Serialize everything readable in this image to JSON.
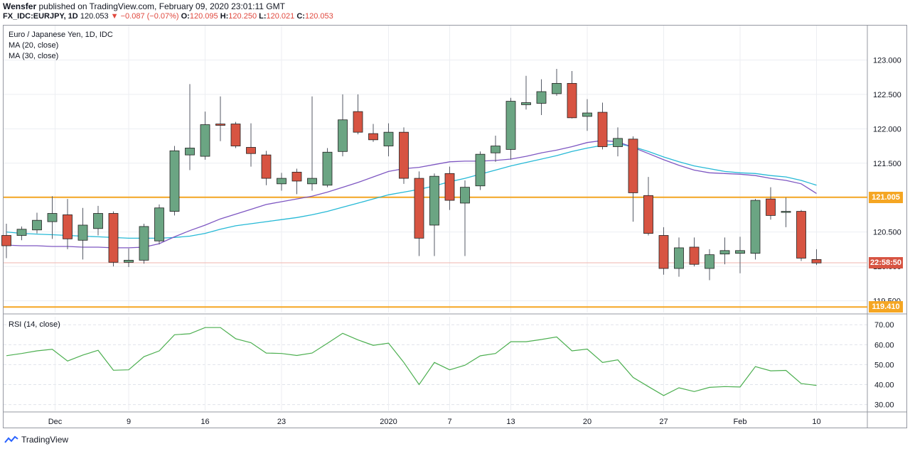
{
  "header": {
    "author": "Wensfer",
    "published_text": "published on TradingView.com, February 09, 2020 23:01:11 GMT",
    "symbol": "FX_IDC:EURJPY, 1D",
    "last_price": "120.053",
    "change_arrow": "▼",
    "change": "−0.087 (−0.07%)",
    "open_label": "O:",
    "open": "120.095",
    "high_label": "H:",
    "high": "120.250",
    "low_label": "L:",
    "low": "120.021",
    "close_label": "C:",
    "close": "120.053"
  },
  "legend": {
    "title": "Euro / Japanese Yen, 1D, IDC",
    "ma20": "MA (20, close)",
    "ma30": "MA (30, close)"
  },
  "rsi_label": "RSI (14, close)",
  "price_axis_labels": [
    "123.000",
    "122.500",
    "122.000",
    "121.500",
    "121.000",
    "120.500",
    "120.000",
    "119.500"
  ],
  "rsi_axis_labels": [
    "70.00",
    "60.00",
    "50.00",
    "40.00",
    "30.00"
  ],
  "tags": {
    "resistance": "121.005",
    "countdown": "22:58:50",
    "support": "119.410"
  },
  "footer": {
    "brand": "TradingView"
  },
  "colors": {
    "up": "#6ba583",
    "down": "#d75442",
    "ma20": "#7e57c2",
    "ma30": "#26b9d6",
    "hline": "#f5a623",
    "rsi": "#4caf50",
    "text_red": "#e0483e"
  },
  "chart_data": {
    "type": "candlestick",
    "price_range": [
      119.33,
      123.5
    ],
    "rsi_range": [
      27,
      74
    ],
    "x_tick_labels": [
      {
        "label": "Dec",
        "bar": 3
      },
      {
        "label": "9",
        "bar": 8
      },
      {
        "label": "16",
        "bar": 13
      },
      {
        "label": "23",
        "bar": 18
      },
      {
        "label": "2020",
        "bar": 25
      },
      {
        "label": "7",
        "bar": 29
      },
      {
        "label": "13",
        "bar": 33
      },
      {
        "label": "20",
        "bar": 38
      },
      {
        "label": "27",
        "bar": 43
      },
      {
        "label": "Feb",
        "bar": 48
      },
      {
        "label": "10",
        "bar": 53
      }
    ],
    "horizontal_levels": [
      121.005,
      119.41
    ],
    "current_price": 120.053,
    "ohlc": [
      [
        120.45,
        120.62,
        120.12,
        120.3
      ],
      [
        120.45,
        120.58,
        120.38,
        120.54
      ],
      [
        120.53,
        120.78,
        120.48,
        120.67
      ],
      [
        120.65,
        121.02,
        120.4,
        120.77
      ],
      [
        120.75,
        120.98,
        120.25,
        120.4
      ],
      [
        120.38,
        120.85,
        120.1,
        120.6
      ],
      [
        120.55,
        120.88,
        120.45,
        120.77
      ],
      [
        120.77,
        120.8,
        120.0,
        120.06
      ],
      [
        120.06,
        120.26,
        119.99,
        120.09
      ],
      [
        120.09,
        120.62,
        120.04,
        120.58
      ],
      [
        120.37,
        120.9,
        120.32,
        120.85
      ],
      [
        120.8,
        121.75,
        120.74,
        121.68
      ],
      [
        121.62,
        122.65,
        121.4,
        121.72
      ],
      [
        121.6,
        122.25,
        121.55,
        122.06
      ],
      [
        122.07,
        122.47,
        121.82,
        122.05
      ],
      [
        122.07,
        122.1,
        121.72,
        121.75
      ],
      [
        121.73,
        122.08,
        121.45,
        121.64
      ],
      [
        121.62,
        121.68,
        121.18,
        121.28
      ],
      [
        121.2,
        121.36,
        121.1,
        121.28
      ],
      [
        121.37,
        121.42,
        121.05,
        121.24
      ],
      [
        121.2,
        122.47,
        121.1,
        121.28
      ],
      [
        121.18,
        121.72,
        121.15,
        121.66
      ],
      [
        121.67,
        122.5,
        121.6,
        122.13
      ],
      [
        122.25,
        122.5,
        121.92,
        121.95
      ],
      [
        121.93,
        122.07,
        121.81,
        121.84
      ],
      [
        121.75,
        122.08,
        121.6,
        121.95
      ],
      [
        121.95,
        122.02,
        121.2,
        121.28
      ],
      [
        121.28,
        121.38,
        120.15,
        120.41
      ],
      [
        120.6,
        121.35,
        120.15,
        121.31
      ],
      [
        121.35,
        121.45,
        120.82,
        120.96
      ],
      [
        120.92,
        121.25,
        120.15,
        121.15
      ],
      [
        121.17,
        121.67,
        121.11,
        121.63
      ],
      [
        121.65,
        121.9,
        121.52,
        121.75
      ],
      [
        121.7,
        122.45,
        121.55,
        122.4
      ],
      [
        122.35,
        122.77,
        122.28,
        122.38
      ],
      [
        122.37,
        122.72,
        122.2,
        122.54
      ],
      [
        122.51,
        122.87,
        122.48,
        122.66
      ],
      [
        122.66,
        122.84,
        122.15,
        122.16
      ],
      [
        122.18,
        122.43,
        121.97,
        122.23
      ],
      [
        122.24,
        122.38,
        121.7,
        121.74
      ],
      [
        121.74,
        122.02,
        121.6,
        121.86
      ],
      [
        121.85,
        121.89,
        120.65,
        121.07
      ],
      [
        121.03,
        121.3,
        120.45,
        120.48
      ],
      [
        120.45,
        120.57,
        119.88,
        119.97
      ],
      [
        119.97,
        120.42,
        119.85,
        120.27
      ],
      [
        120.28,
        120.42,
        120.0,
        120.03
      ],
      [
        119.97,
        120.25,
        119.8,
        120.17
      ],
      [
        120.18,
        120.42,
        120.03,
        120.23
      ],
      [
        120.19,
        120.43,
        119.9,
        120.23
      ],
      [
        120.19,
        120.98,
        120.1,
        120.96
      ],
      [
        120.98,
        121.15,
        120.68,
        120.74
      ],
      [
        120.79,
        121.0,
        120.57,
        120.8
      ],
      [
        120.8,
        120.82,
        120.08,
        120.12
      ],
      [
        120.1,
        120.25,
        120.02,
        120.05
      ]
    ],
    "ma20": [
      120.31,
      120.3,
      120.3,
      120.29,
      120.29,
      120.28,
      120.28,
      120.27,
      120.27,
      120.28,
      120.33,
      120.43,
      120.52,
      120.6,
      120.69,
      120.76,
      120.83,
      120.9,
      120.94,
      120.98,
      121.02,
      121.08,
      121.15,
      121.22,
      121.3,
      121.38,
      121.42,
      121.44,
      121.48,
      121.52,
      121.53,
      121.53,
      121.54,
      121.56,
      121.6,
      121.65,
      121.69,
      121.74,
      121.8,
      121.83,
      121.81,
      121.73,
      121.64,
      121.55,
      121.47,
      121.4,
      121.36,
      121.35,
      121.34,
      121.32,
      121.28,
      121.25,
      121.2,
      121.06
    ],
    "ma30": [
      120.5,
      120.48,
      120.47,
      120.46,
      120.45,
      120.44,
      120.43,
      120.42,
      120.41,
      120.41,
      120.41,
      120.42,
      120.44,
      120.48,
      120.54,
      120.59,
      120.62,
      120.65,
      120.68,
      120.71,
      120.75,
      120.8,
      120.86,
      120.92,
      120.98,
      121.04,
      121.08,
      121.12,
      121.17,
      121.23,
      121.28,
      121.34,
      121.4,
      121.46,
      121.51,
      121.56,
      121.61,
      121.67,
      121.72,
      121.76,
      121.78,
      121.74,
      121.67,
      121.59,
      121.52,
      121.46,
      121.42,
      121.38,
      121.36,
      121.35,
      121.32,
      121.3,
      121.25,
      121.18
    ],
    "rsi": [
      54.5,
      55.6,
      56.9,
      57.7,
      51.8,
      54.8,
      57.2,
      47.2,
      47.4,
      54.0,
      56.9,
      65.0,
      65.5,
      68.6,
      68.6,
      63.0,
      61.0,
      55.8,
      55.6,
      54.6,
      55.8,
      60.7,
      65.7,
      62.4,
      59.7,
      60.8,
      51.1,
      40.0,
      51.1,
      47.4,
      49.7,
      54.4,
      55.6,
      61.5,
      61.5,
      62.6,
      63.9,
      56.9,
      57.8,
      51.1,
      52.4,
      43.6,
      39.0,
      34.5,
      38.4,
      36.5,
      38.6,
      39.0,
      38.8,
      49.0,
      46.9,
      47.1,
      40.5,
      39.6
    ]
  }
}
